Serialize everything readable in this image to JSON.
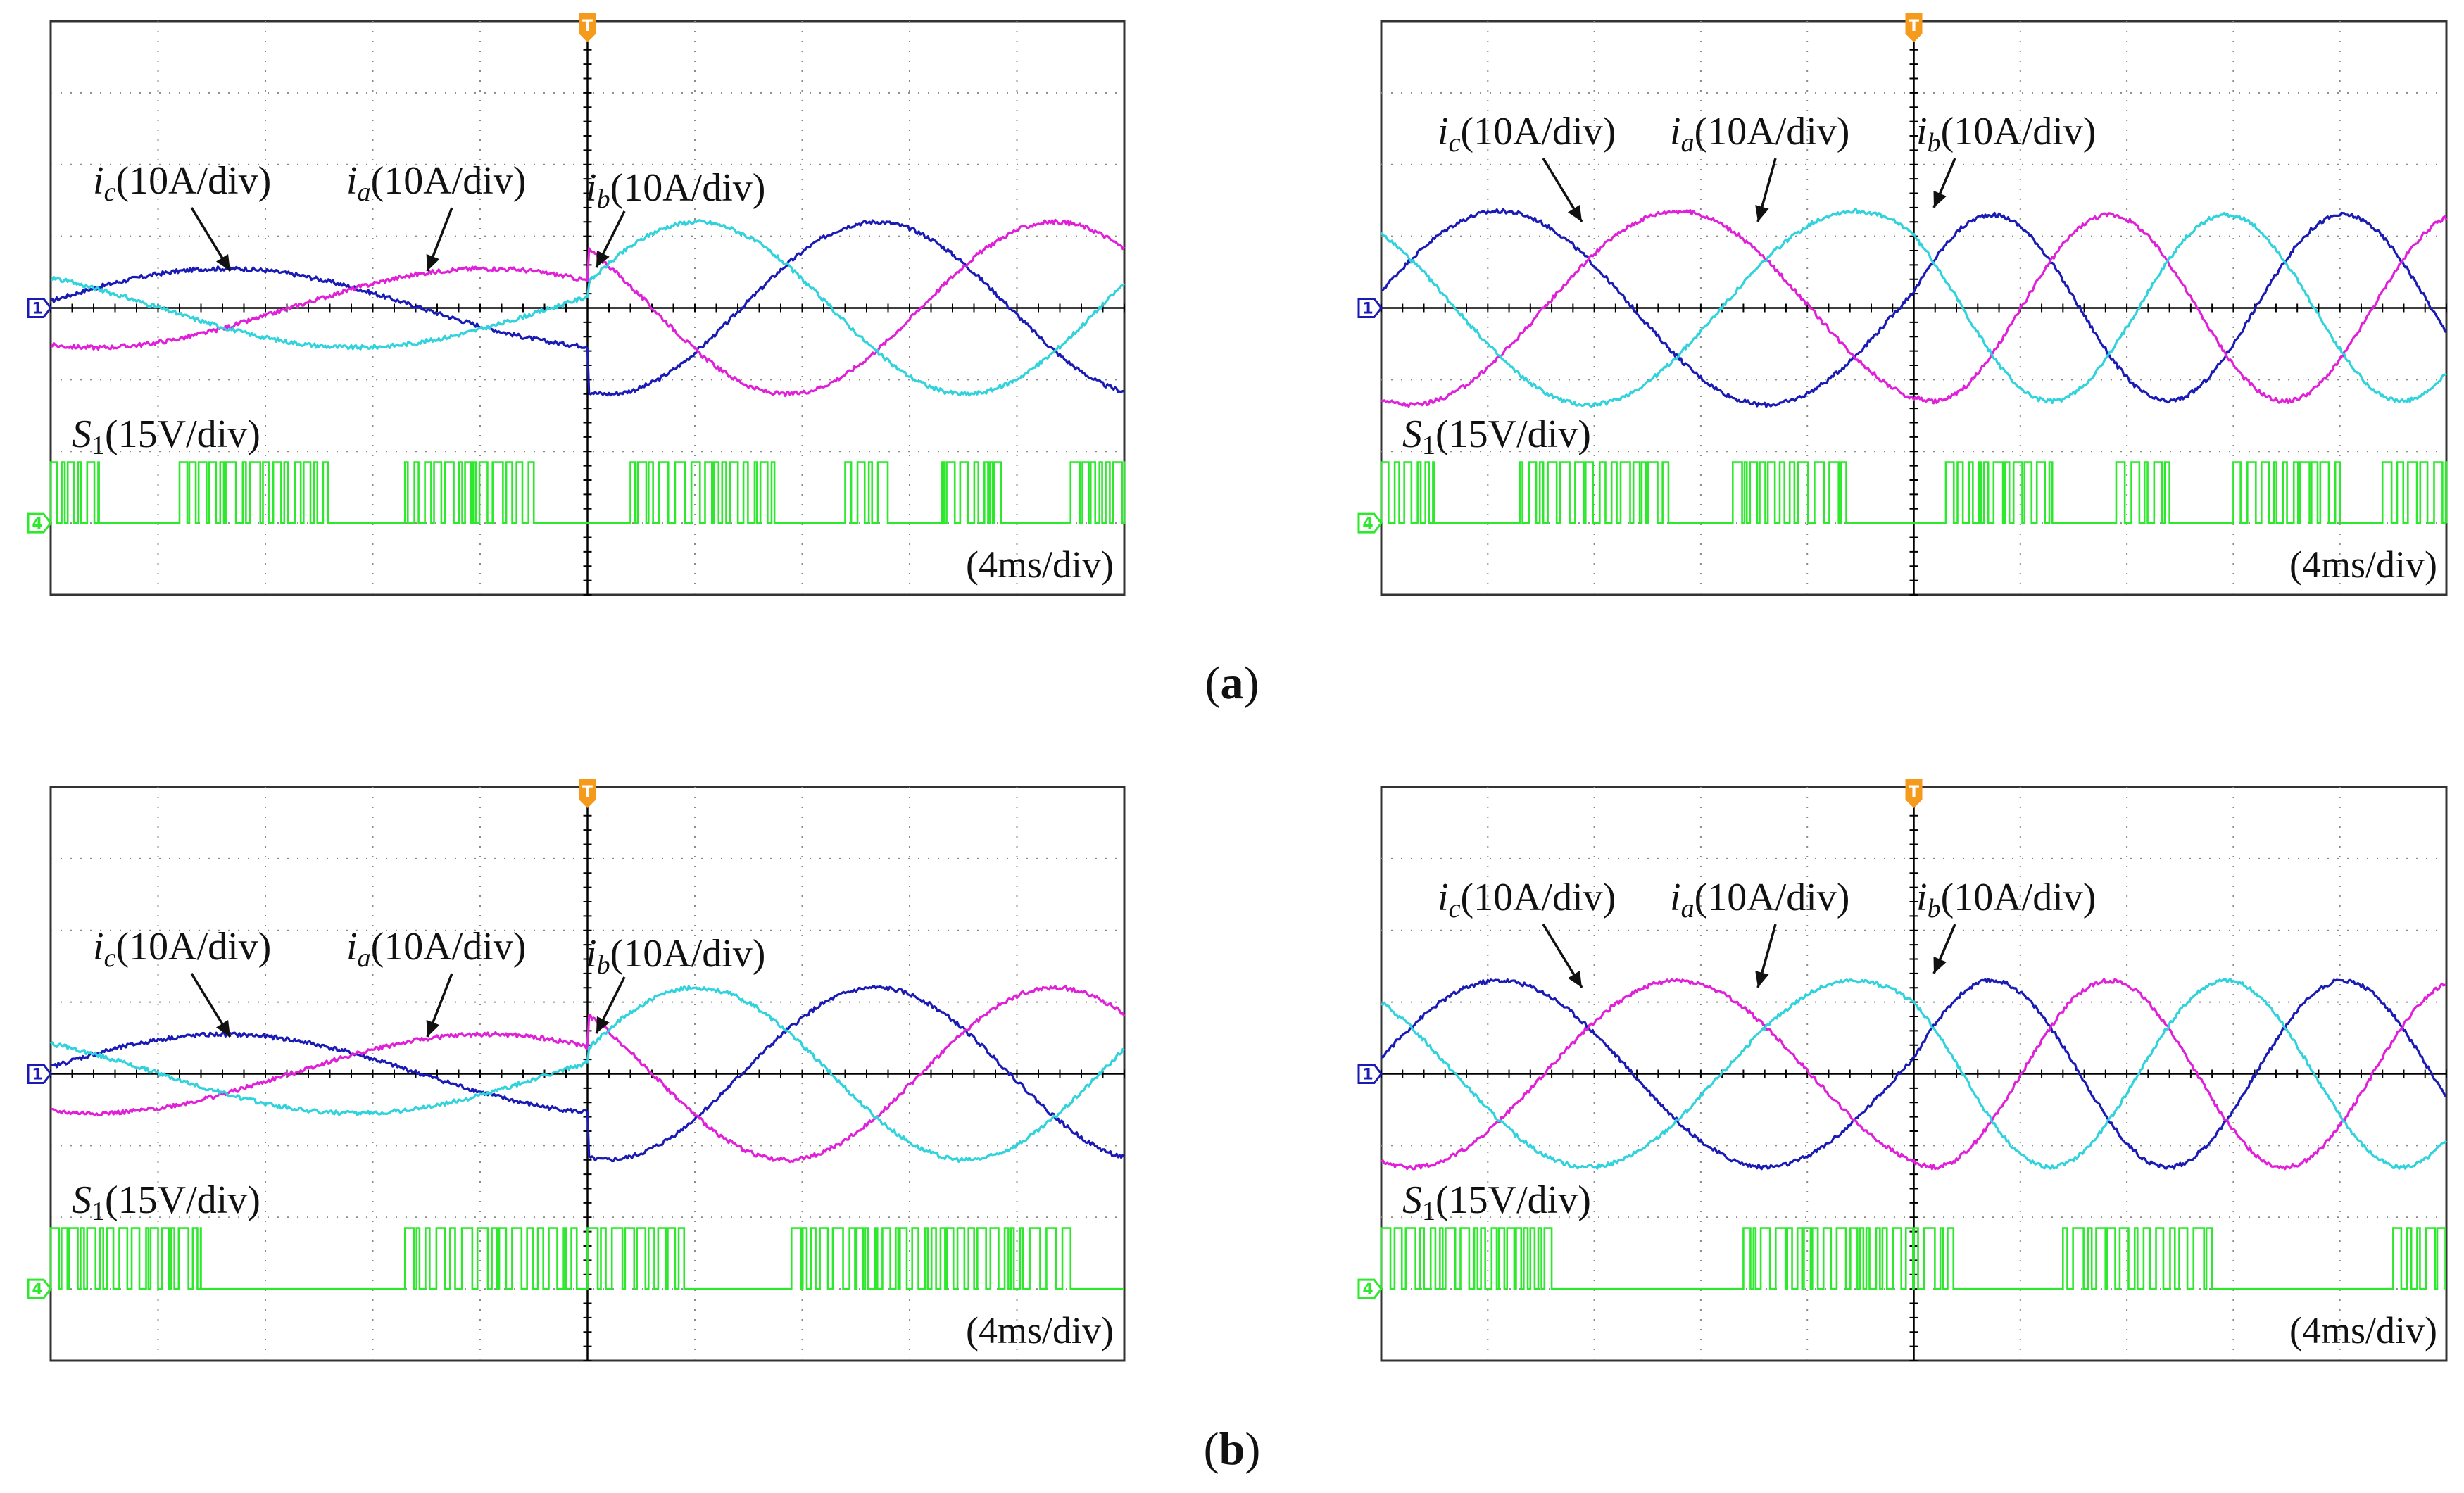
{
  "figure": {
    "caption_a": "(a)",
    "caption_b": "(b)",
    "caption_a_letter": "a",
    "caption_b_letter": "b"
  },
  "colors": {
    "ia": "#1a1ab4",
    "ib": "#e020d8",
    "ic": "#30d2dc",
    "s1": "#2ee82e",
    "axis": "#000000",
    "grid": "#8a8a8a",
    "trigger": "#f59a1a"
  },
  "chart_data": [
    {
      "type": "line",
      "panel": "a-left",
      "title": "",
      "labels": {
        "ic": "i",
        "ic_sub": "c",
        "ic_scale": "(10A/div)",
        "ia": "i",
        "ia_sub": "a",
        "ia_scale": "(10A/div)",
        "ib": "i",
        "ib_sub": "b",
        "ib_scale": "(10A/div)",
        "s1": "S",
        "s1_sub": "1",
        "s1_scale": "(15V/div)",
        "time_scale": "(4ms/div)",
        "ch1_marker": "1",
        "ch4_marker": "4",
        "trigger_marker": "T"
      },
      "xlim": [
        0,
        10
      ],
      "ylim": [
        -4,
        4
      ],
      "currents": {
        "before_amplitude_div": 0.55,
        "after_amplitude_div": 1.2,
        "period_before_div": 7.3,
        "period_after_div": 5.0,
        "switch_x_div": 5.0,
        "ia_phase_deg": 10,
        "noise_div": 0.03
      },
      "pwm": {
        "level_div": -3.0,
        "high_div": 0.85,
        "bursts": [
          [
            0.0,
            0.45
          ],
          [
            1.2,
            2.6
          ],
          [
            3.3,
            4.5
          ],
          [
            5.4,
            6.8
          ],
          [
            7.4,
            7.8
          ],
          [
            8.3,
            8.9
          ],
          [
            9.5,
            10.0
          ]
        ]
      }
    },
    {
      "type": "line",
      "panel": "a-right",
      "title": "",
      "labels": {
        "ic": "i",
        "ic_sub": "c",
        "ic_scale": "(10A/div)",
        "ia": "i",
        "ia_sub": "a",
        "ia_scale": "(10A/div)",
        "ib": "i",
        "ib_sub": "b",
        "ib_scale": "(10A/div)",
        "s1": "S",
        "s1_sub": "1",
        "s1_scale": "(15V/div)",
        "time_scale": "(4ms/div)",
        "ch1_marker": "1",
        "ch4_marker": "4",
        "trigger_marker": "T"
      },
      "xlim": [
        0,
        10
      ],
      "ylim": [
        -4,
        4
      ],
      "currents": {
        "before_amplitude_div": 1.35,
        "after_amplitude_div": 1.3,
        "period_before_div": 5.0,
        "period_after_div": 3.3,
        "switch_x_div": 5.0,
        "ia_phase_deg": 10,
        "noise_div": 0.03
      },
      "pwm": {
        "level_div": -3.0,
        "high_div": 0.85,
        "bursts": [
          [
            0.0,
            0.5
          ],
          [
            1.3,
            2.7
          ],
          [
            3.3,
            4.4
          ],
          [
            5.3,
            6.3
          ],
          [
            6.9,
            7.4
          ],
          [
            8.0,
            9.0
          ],
          [
            9.4,
            10.0
          ]
        ]
      }
    },
    {
      "type": "line",
      "panel": "b-left",
      "title": "",
      "labels": {
        "ic": "i",
        "ic_sub": "c",
        "ic_scale": "(10A/div)",
        "ia": "i",
        "ia_sub": "a",
        "ia_scale": "(10A/div)",
        "ib": "i",
        "ib_sub": "b",
        "ib_scale": "(10A/div)",
        "s1": "S",
        "s1_sub": "1",
        "s1_scale": "(15V/div)",
        "time_scale": "(4ms/div)",
        "ch1_marker": "1",
        "ch4_marker": "4",
        "trigger_marker": "T"
      },
      "xlim": [
        0,
        10
      ],
      "ylim": [
        -4,
        4
      ],
      "currents": {
        "before_amplitude_div": 0.55,
        "after_amplitude_div": 1.2,
        "period_before_div": 7.3,
        "period_after_div": 5.0,
        "switch_x_div": 5.0,
        "ia_phase_deg": 10,
        "noise_div": 0.03
      },
      "pwm": {
        "level_div": -3.0,
        "high_div": 0.85,
        "bursts": [
          [
            0.0,
            1.4
          ],
          [
            3.3,
            4.9
          ],
          [
            5.0,
            5.9
          ],
          [
            6.9,
            9.5
          ]
        ]
      }
    },
    {
      "type": "line",
      "panel": "b-right",
      "title": "",
      "labels": {
        "ic": "i",
        "ic_sub": "c",
        "ic_scale": "(10A/div)",
        "ia": "i",
        "ia_sub": "a",
        "ia_scale": "(10A/div)",
        "ib": "i",
        "ib_sub": "b",
        "ib_scale": "(10A/div)",
        "s1": "S",
        "s1_sub": "1",
        "s1_scale": "(15V/div)",
        "time_scale": "(4ms/div)",
        "ch1_marker": "1",
        "ch4_marker": "4",
        "trigger_marker": "T"
      },
      "xlim": [
        0,
        10
      ],
      "ylim": [
        -4,
        4
      ],
      "currents": {
        "before_amplitude_div": 1.3,
        "after_amplitude_div": 1.3,
        "period_before_div": 5.0,
        "period_after_div": 3.3,
        "switch_x_div": 5.0,
        "ia_phase_deg": 10,
        "noise_div": 0.03
      },
      "pwm": {
        "level_div": -3.0,
        "high_div": 0.85,
        "bursts": [
          [
            0.0,
            1.6
          ],
          [
            3.4,
            5.0
          ],
          [
            5.0,
            5.4
          ],
          [
            6.4,
            7.8
          ],
          [
            9.5,
            10.0
          ]
        ]
      }
    }
  ]
}
